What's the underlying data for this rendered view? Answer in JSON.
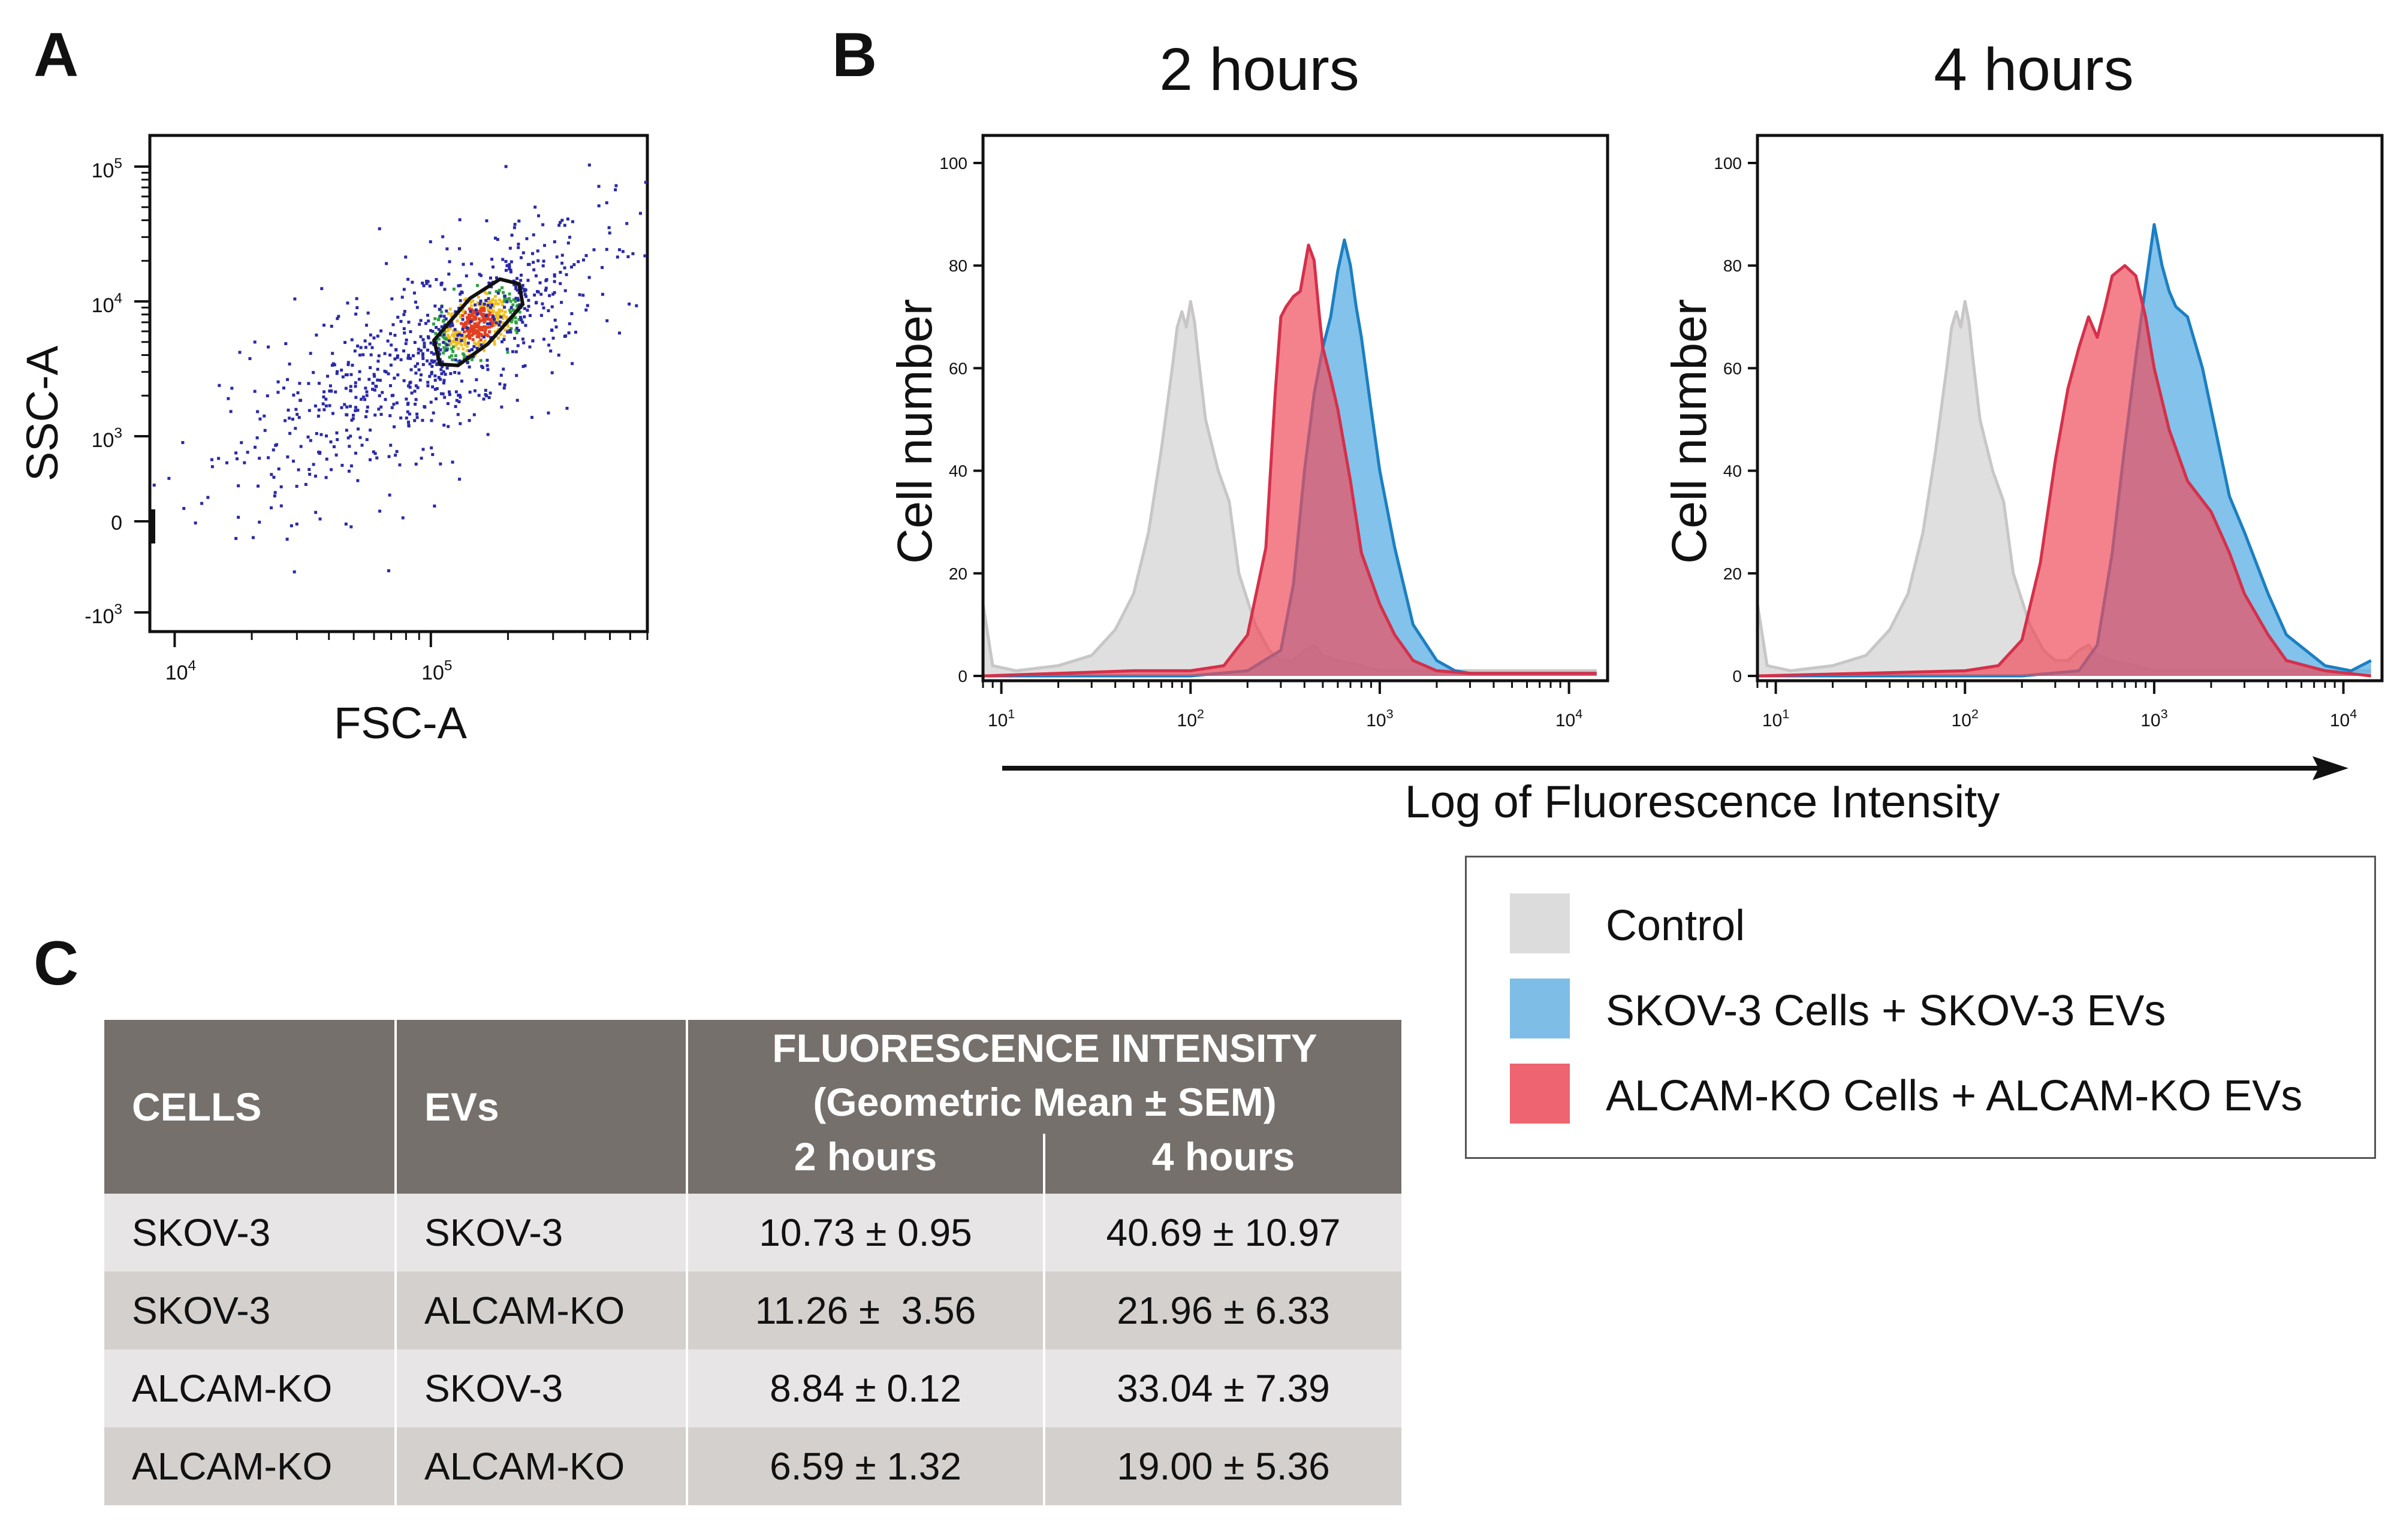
{
  "panels": {
    "a": "A",
    "b": "B",
    "c": "C"
  },
  "colors": {
    "control": "#dddcdc",
    "skov": "#5aaee3",
    "alcam": "#ee4d5c",
    "control_line": "#c8c6c6",
    "skov_line": "#1b7fc2",
    "alcam_line": "#d5304a",
    "table_header": "#75706c"
  },
  "chart_data": [
    {
      "type": "scatter",
      "panel": "A",
      "title": "",
      "xlabel": "FSC-A",
      "ylabel": "SSC-A",
      "x_ticks": [
        {
          "base": "10",
          "exp": "4",
          "value": 10000
        },
        {
          "base": "10",
          "exp": "5",
          "value": 100000
        }
      ],
      "y_ticks": [
        {
          "base": "10",
          "exp": "5",
          "value": 100000
        },
        {
          "base": "10",
          "exp": "4",
          "value": 10000
        },
        {
          "base": "10",
          "exp": "3",
          "value": 1000
        },
        {
          "base": "",
          "exp": "",
          "label": "0",
          "value": 0
        },
        {
          "base": "-10",
          "exp": "3",
          "value": -1000
        }
      ],
      "xlim": [
        8000,
        700000
      ],
      "ylim_note": "biexponential",
      "gate": {
        "shape": "polygon",
        "center_x": 140000,
        "center_y": 7000
      },
      "cluster": {
        "center_x": 150000,
        "center_y": 7000,
        "n_points": 1200
      }
    },
    {
      "type": "area",
      "panel": "B",
      "title": "2 hours",
      "xlabel": "Log of Fluorescence Intensity",
      "ylabel": "Cell number",
      "x_scale": "log",
      "xlim": [
        8,
        16000
      ],
      "ylim": [
        0,
        100
      ],
      "y_ticks": [
        "0",
        "20",
        "40",
        "60",
        "80",
        "100"
      ],
      "x_ticks": [
        {
          "base": "10",
          "exp": "1",
          "value": 10
        },
        {
          "base": "10",
          "exp": "2",
          "value": 100
        },
        {
          "base": "10",
          "exp": "3",
          "value": 1000
        },
        {
          "base": "10",
          "exp": "4",
          "value": 10000
        }
      ],
      "series": [
        {
          "name": "Control",
          "x": [
            8,
            9,
            12,
            20,
            30,
            40,
            50,
            60,
            70,
            80,
            85,
            90,
            95,
            100,
            105,
            110,
            120,
            140,
            160,
            180,
            220,
            260,
            300,
            350,
            400,
            450,
            500,
            600,
            800,
            1000,
            1500,
            2000,
            3000,
            5000,
            14000
          ],
          "y": [
            14,
            2,
            1,
            2,
            4,
            9,
            16,
            28,
            44,
            60,
            68,
            71,
            68,
            73,
            69,
            62,
            50,
            40,
            34,
            20,
            10,
            5,
            3,
            3,
            5,
            6,
            4,
            3,
            2,
            1,
            1,
            1,
            1,
            1,
            1
          ]
        },
        {
          "name": "SKOV-3 Cells + SKOV-3 EVs",
          "x": [
            8,
            100,
            200,
            300,
            350,
            400,
            450,
            500,
            550,
            600,
            650,
            700,
            750,
            800,
            900,
            1000,
            1200,
            1500,
            2000,
            2500,
            3000,
            4000,
            14000
          ],
          "y": [
            0,
            0,
            1,
            5,
            18,
            40,
            55,
            64,
            70,
            79,
            85,
            80,
            72,
            66,
            52,
            40,
            25,
            10,
            3,
            1,
            0.5,
            0.5,
            0.5
          ]
        },
        {
          "name": "ALCAM-KO Cells + ALCAM-KO EVs",
          "x": [
            8,
            50,
            100,
            150,
            200,
            250,
            280,
            300,
            320,
            350,
            380,
            420,
            450,
            480,
            500,
            550,
            600,
            700,
            800,
            1000,
            1200,
            1500,
            2000,
            3000,
            14000
          ],
          "y": [
            0,
            1,
            1,
            2,
            8,
            25,
            55,
            70,
            72,
            74,
            75,
            84,
            81,
            70,
            64,
            58,
            52,
            38,
            24,
            14,
            8,
            3,
            1,
            0.5,
            0.5
          ]
        }
      ]
    },
    {
      "type": "area",
      "panel": "B",
      "title": "4 hours",
      "xlabel": "Log of Fluorescence Intensity",
      "ylabel": "Cell number",
      "x_scale": "log",
      "xlim": [
        8,
        16000
      ],
      "ylim": [
        0,
        100
      ],
      "y_ticks": [
        "0",
        "20",
        "40",
        "60",
        "80",
        "100"
      ],
      "x_ticks": [
        {
          "base": "10",
          "exp": "1",
          "value": 10
        },
        {
          "base": "10",
          "exp": "2",
          "value": 100
        },
        {
          "base": "10",
          "exp": "3",
          "value": 1000
        },
        {
          "base": "10",
          "exp": "4",
          "value": 10000
        }
      ],
      "series": [
        {
          "name": "Control",
          "x": [
            8,
            9,
            12,
            20,
            30,
            40,
            50,
            60,
            70,
            80,
            85,
            90,
            95,
            100,
            105,
            110,
            120,
            140,
            160,
            180,
            220,
            260,
            300,
            350,
            400,
            450,
            500,
            600,
            800,
            1000,
            1500,
            2000,
            3000,
            5000,
            14000
          ],
          "y": [
            14,
            2,
            1,
            2,
            4,
            9,
            16,
            28,
            44,
            60,
            68,
            71,
            68,
            73,
            69,
            62,
            50,
            40,
            34,
            20,
            10,
            5,
            3,
            3,
            5,
            6,
            4,
            3,
            2,
            1,
            1,
            1,
            1,
            1,
            1
          ]
        },
        {
          "name": "SKOV-3 Cells + SKOV-3 EVs",
          "x": [
            8,
            200,
            400,
            500,
            600,
            700,
            800,
            900,
            1000,
            1100,
            1200,
            1300,
            1500,
            1800,
            2000,
            2500,
            3000,
            4000,
            5000,
            8000,
            11000,
            14000
          ],
          "y": [
            0,
            0,
            1,
            6,
            24,
            45,
            62,
            76,
            88,
            80,
            75,
            72,
            70,
            60,
            52,
            35,
            28,
            16,
            8,
            2,
            1,
            3
          ]
        },
        {
          "name": "ALCAM-KO Cells + ALCAM-KO EVs",
          "x": [
            8,
            100,
            150,
            200,
            250,
            300,
            350,
            400,
            450,
            500,
            550,
            600,
            700,
            800,
            900,
            1000,
            1200,
            1500,
            2000,
            2500,
            3000,
            4000,
            5000,
            8000,
            14000
          ],
          "y": [
            0,
            1,
            2,
            7,
            22,
            42,
            56,
            64,
            70,
            66,
            72,
            78,
            80,
            78,
            70,
            60,
            48,
            38,
            32,
            24,
            16,
            8,
            3,
            1,
            0
          ]
        }
      ]
    }
  ],
  "panel_b": {
    "arrow_label": "Log of Fluorescence Intensity"
  },
  "legend": {
    "items": [
      {
        "key": "control",
        "label": "Control"
      },
      {
        "key": "skov",
        "label": "SKOV-3 Cells + SKOV-3 EVs"
      },
      {
        "key": "alcam",
        "label": "ALCAM-KO Cells + ALCAM-KO EVs"
      }
    ]
  },
  "table": {
    "headers": {
      "cells": "CELLS",
      "evs": "EVs",
      "fi_line1": "FLUORESCENCE INTENSITY",
      "fi_line2": "(Geometric Mean ± SEM)",
      "h2": "2 hours",
      "h4": "4 hours"
    },
    "rows": [
      {
        "cells": "SKOV-3",
        "evs": "SKOV-3",
        "h2": "10.73 ± 0.95",
        "h4": "40.69 ± 10.97"
      },
      {
        "cells": "SKOV-3",
        "evs": "ALCAM-KO",
        "h2": "11.26 ±  3.56",
        "h4": "21.96 ± 6.33"
      },
      {
        "cells": "ALCAM-KO",
        "evs": "SKOV-3",
        "h2": "8.84 ± 0.12",
        "h4": "33.04 ± 7.39"
      },
      {
        "cells": "ALCAM-KO",
        "evs": "ALCAM-KO",
        "h2": "6.59 ± 1.32",
        "h4": "19.00 ± 5.36"
      }
    ]
  }
}
